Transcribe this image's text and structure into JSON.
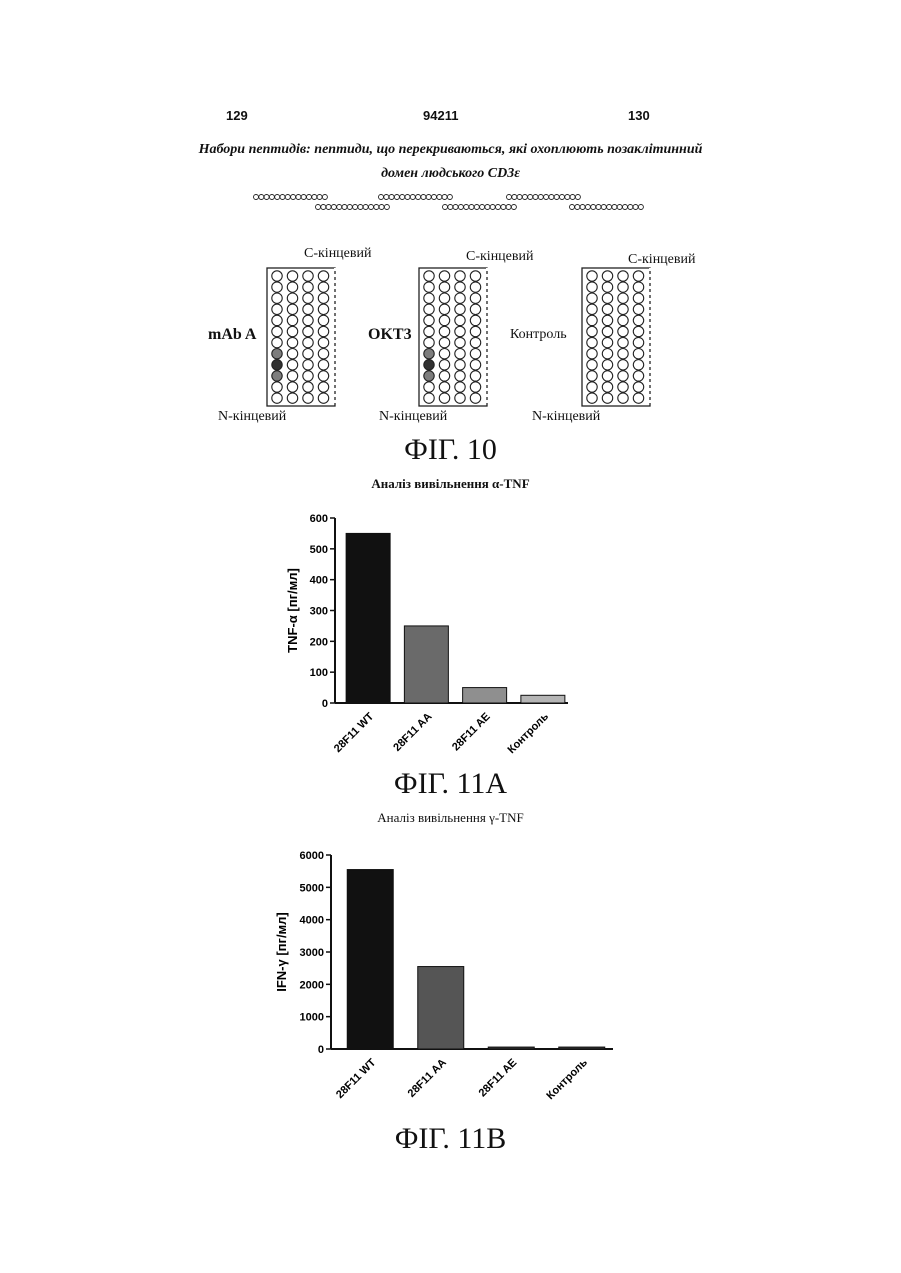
{
  "header": {
    "page_left": "129",
    "doc_number": "94211",
    "page_right": "130"
  },
  "fig10": {
    "title_line1": "Набори пептидів: пептиди, що перекриваються, які охоплюють позаклітинний",
    "title_line2": "домен людського CD3ε",
    "plates": [
      {
        "side_label": "mAb A",
        "top_label": "С-кінцевий",
        "bottom_label": "N-кінцевий",
        "positive_wells": [
          {
            "row": 7,
            "col": 0,
            "level": 0.6
          },
          {
            "row": 8,
            "col": 0,
            "level": 0.95
          },
          {
            "row": 9,
            "col": 0,
            "level": 0.6
          }
        ]
      },
      {
        "side_label": "OKT3",
        "top_label": "С-кінцевий",
        "bottom_label": "N-кінцевий",
        "positive_wells": [
          {
            "row": 7,
            "col": 0,
            "level": 0.6
          },
          {
            "row": 8,
            "col": 0,
            "level": 0.95
          },
          {
            "row": 9,
            "col": 0,
            "level": 0.6
          }
        ]
      },
      {
        "side_label": "Контроль",
        "top_label": "С-кінцевий",
        "bottom_label": "N-кінцевий",
        "positive_wells": []
      }
    ],
    "caption": "ФІГ. 10"
  },
  "fig11a": {
    "title": "Аналіз вивільнення α-TNF",
    "caption": "ФІГ. 11A"
  },
  "fig11b": {
    "title": "Аналіз вивільнення γ-TNF",
    "caption": "ФІГ. 11B"
  },
  "chart_data": [
    {
      "type": "bar",
      "title": "Аналіз вивільнення α-TNF",
      "ylabel": "TNF-α [пг/мл]",
      "xlabel": "",
      "categories": [
        "28F11 WT",
        "28F11 AA",
        "28F11 AE",
        "Контроль"
      ],
      "values": [
        550,
        250,
        50,
        25
      ],
      "ylim": [
        0,
        600
      ],
      "yticks": [
        0,
        100,
        200,
        300,
        400,
        500,
        600
      ],
      "fills": [
        "#111111",
        "#6a6a6a",
        "#8f8f8f",
        "#b5b5b5"
      ]
    },
    {
      "type": "bar",
      "title": "Аналіз вивільнення γ-TNF",
      "ylabel": "IFN-γ [пг/мл]",
      "xlabel": "",
      "categories": [
        "28F11 WT",
        "28F11 AA",
        "28F11 AE",
        "Контроль"
      ],
      "values": [
        5550,
        2550,
        60,
        60
      ],
      "ylim": [
        0,
        6000
      ],
      "yticks": [
        0,
        1000,
        2000,
        3000,
        4000,
        5000,
        6000
      ],
      "fills": [
        "#111111",
        "#555555",
        "#333333",
        "#333333"
      ]
    }
  ]
}
